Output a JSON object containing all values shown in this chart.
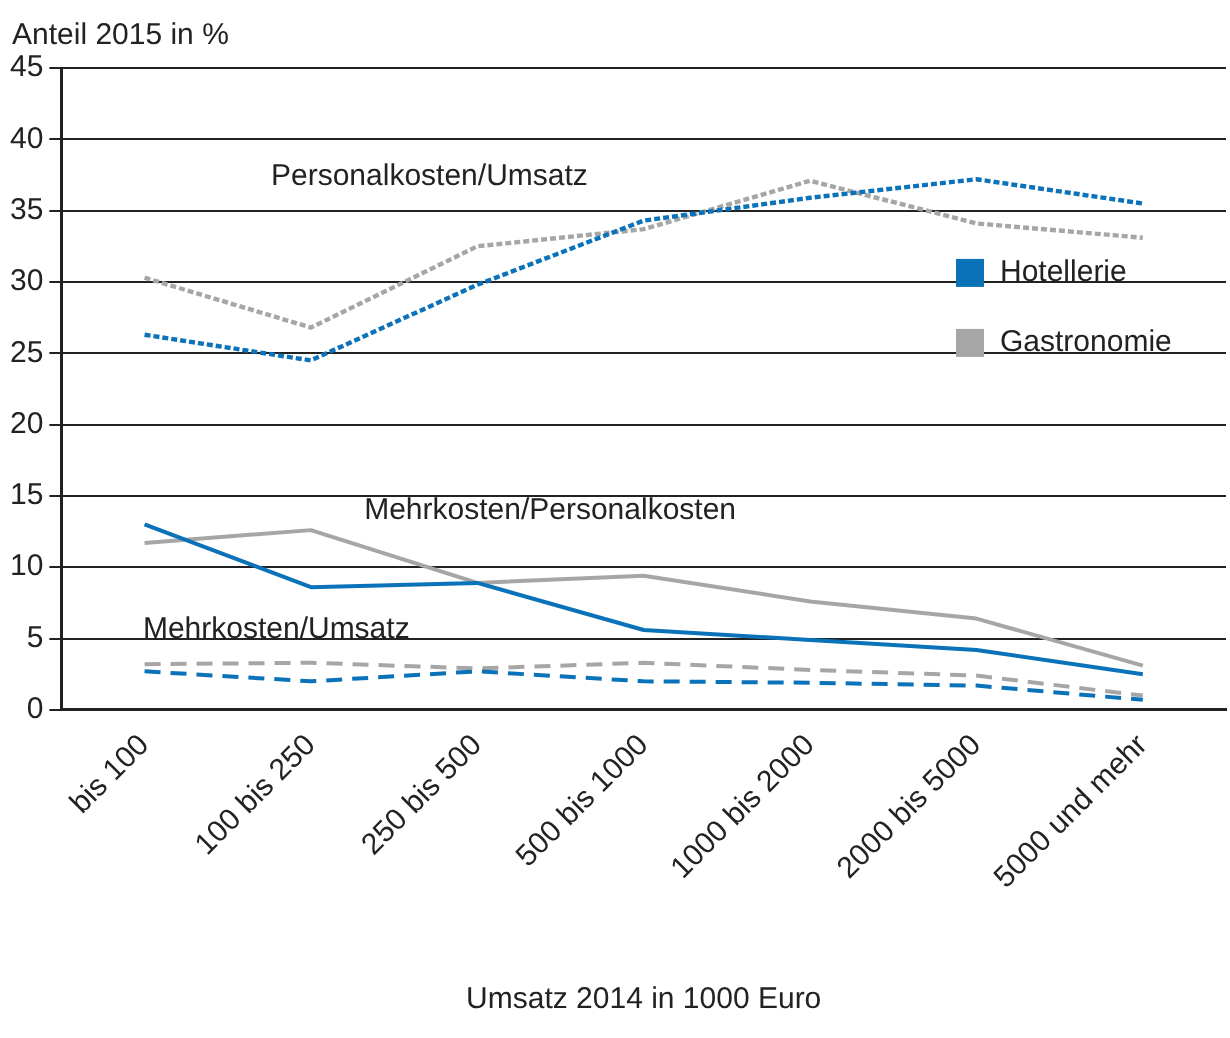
{
  "chart_data": {
    "type": "line",
    "xlabel": "Umsatz 2014 in 1000 Euro",
    "ylabel": "Anteil 2015 in %",
    "categories": [
      "bis 100",
      "100 bis 250",
      "250 bis 500",
      "500 bis 1000",
      "1000 bis 2000",
      "2000 bis 5000",
      "5000 und mehr"
    ],
    "series": [
      {
        "name": "Hotellerie",
        "color": "#0a72b8",
        "line_style": "dotted",
        "values": [
          26.3,
          24.5,
          29.8,
          34.3,
          35.9,
          37.2,
          35.5
        ]
      },
      {
        "name": "Gastronomie",
        "color": "#a6a6a6",
        "line_style": "dotted",
        "values": [
          30.3,
          26.8,
          32.5,
          33.7,
          37.1,
          34.1,
          33.1
        ]
      },
      {
        "color": "#0a72b8",
        "line_style": "solid",
        "values": [
          13.0,
          8.6,
          8.9,
          5.6,
          4.9,
          4.2,
          2.5
        ]
      },
      {
        "color": "#a6a6a6",
        "line_style": "solid",
        "values": [
          11.7,
          12.6,
          8.9,
          9.4,
          7.6,
          6.4,
          3.1
        ]
      },
      {
        "color": "#0a72b8",
        "line_style": "dashed",
        "values": [
          2.7,
          2.0,
          2.7,
          2.0,
          1.9,
          1.7,
          0.7
        ]
      },
      {
        "color": "#a6a6a6",
        "line_style": "dashed",
        "values": [
          3.2,
          3.3,
          2.9,
          3.3,
          2.8,
          2.4,
          1.0
        ]
      }
    ],
    "annotations": [
      "Personalkosten/Umsatz",
      "Mehrkosten/Personalkosten",
      "Mehrkosten/Umsatz"
    ],
    "ylim": [
      0,
      45
    ],
    "yticks": [
      0,
      5,
      10,
      15,
      20,
      25,
      30,
      35,
      40,
      45
    ],
    "grid": "y",
    "legend": "right",
    "marker": "none"
  }
}
